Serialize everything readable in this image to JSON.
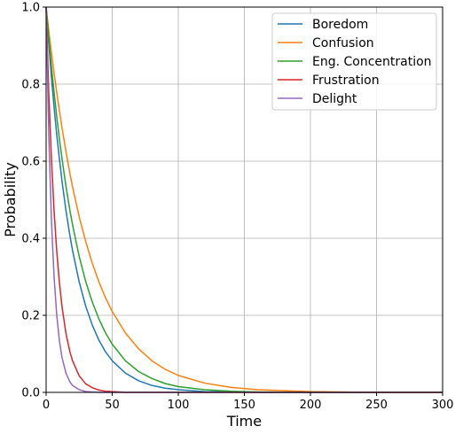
{
  "chart_data": {
    "type": "line",
    "xlabel": "Time",
    "ylabel": "Probability",
    "xlim": [
      0,
      300
    ],
    "ylim": [
      0,
      1.0
    ],
    "x_ticks": [
      "0",
      "50",
      "100",
      "150",
      "200",
      "250",
      "300"
    ],
    "y_ticks": [
      "0.0",
      "0.2",
      "0.4",
      "0.6",
      "0.8",
      "1.0"
    ],
    "grid": true,
    "legend_position": "top-right",
    "x": [
      0,
      2,
      4,
      6,
      8,
      10,
      12,
      15,
      18,
      20,
      25,
      30,
      35,
      40,
      45,
      50,
      60,
      70,
      80,
      90,
      100,
      120,
      140,
      160,
      200,
      250,
      300
    ],
    "series": [
      {
        "name": "Boredom",
        "color": "#1f77b4",
        "values": [
          1.0,
          0.905,
          0.819,
          0.741,
          0.67,
          0.607,
          0.549,
          0.472,
          0.407,
          0.368,
          0.287,
          0.223,
          0.174,
          0.135,
          0.105,
          0.082,
          0.05,
          0.03,
          0.018,
          0.011,
          0.007,
          0.002,
          0.001,
          0.0,
          0.0,
          0.0,
          0.0
        ]
      },
      {
        "name": "Confusion",
        "color": "#ff7f0e",
        "values": [
          1.0,
          0.939,
          0.882,
          0.829,
          0.779,
          0.732,
          0.687,
          0.625,
          0.568,
          0.533,
          0.456,
          0.391,
          0.334,
          0.286,
          0.245,
          0.21,
          0.154,
          0.113,
          0.082,
          0.06,
          0.044,
          0.024,
          0.013,
          0.007,
          0.002,
          0.0,
          0.0
        ]
      },
      {
        "name": "Eng. Concentration",
        "color": "#2ca02c",
        "values": [
          1.0,
          0.92,
          0.846,
          0.779,
          0.717,
          0.659,
          0.607,
          0.535,
          0.472,
          0.435,
          0.353,
          0.287,
          0.234,
          0.19,
          0.154,
          0.125,
          0.082,
          0.054,
          0.036,
          0.023,
          0.015,
          0.007,
          0.003,
          0.001,
          0.0,
          0.0,
          0.0
        ]
      },
      {
        "name": "Frustration",
        "color": "#d62728",
        "values": [
          1.0,
          0.779,
          0.607,
          0.472,
          0.368,
          0.287,
          0.223,
          0.153,
          0.105,
          0.082,
          0.043,
          0.022,
          0.012,
          0.006,
          0.003,
          0.002,
          0.0,
          0.0,
          0.0,
          0.0,
          0.0,
          0.0,
          0.0,
          0.0,
          0.0,
          0.0,
          0.0
        ]
      },
      {
        "name": "Delight",
        "color": "#9467bd",
        "values": [
          1.0,
          0.67,
          0.449,
          0.301,
          0.202,
          0.135,
          0.091,
          0.05,
          0.027,
          0.018,
          0.007,
          0.002,
          0.001,
          0.0,
          0.0,
          0.0,
          0.0,
          0.0,
          0.0,
          0.0,
          0.0,
          0.0,
          0.0,
          0.0,
          0.0,
          0.0,
          0.0
        ]
      }
    ]
  }
}
